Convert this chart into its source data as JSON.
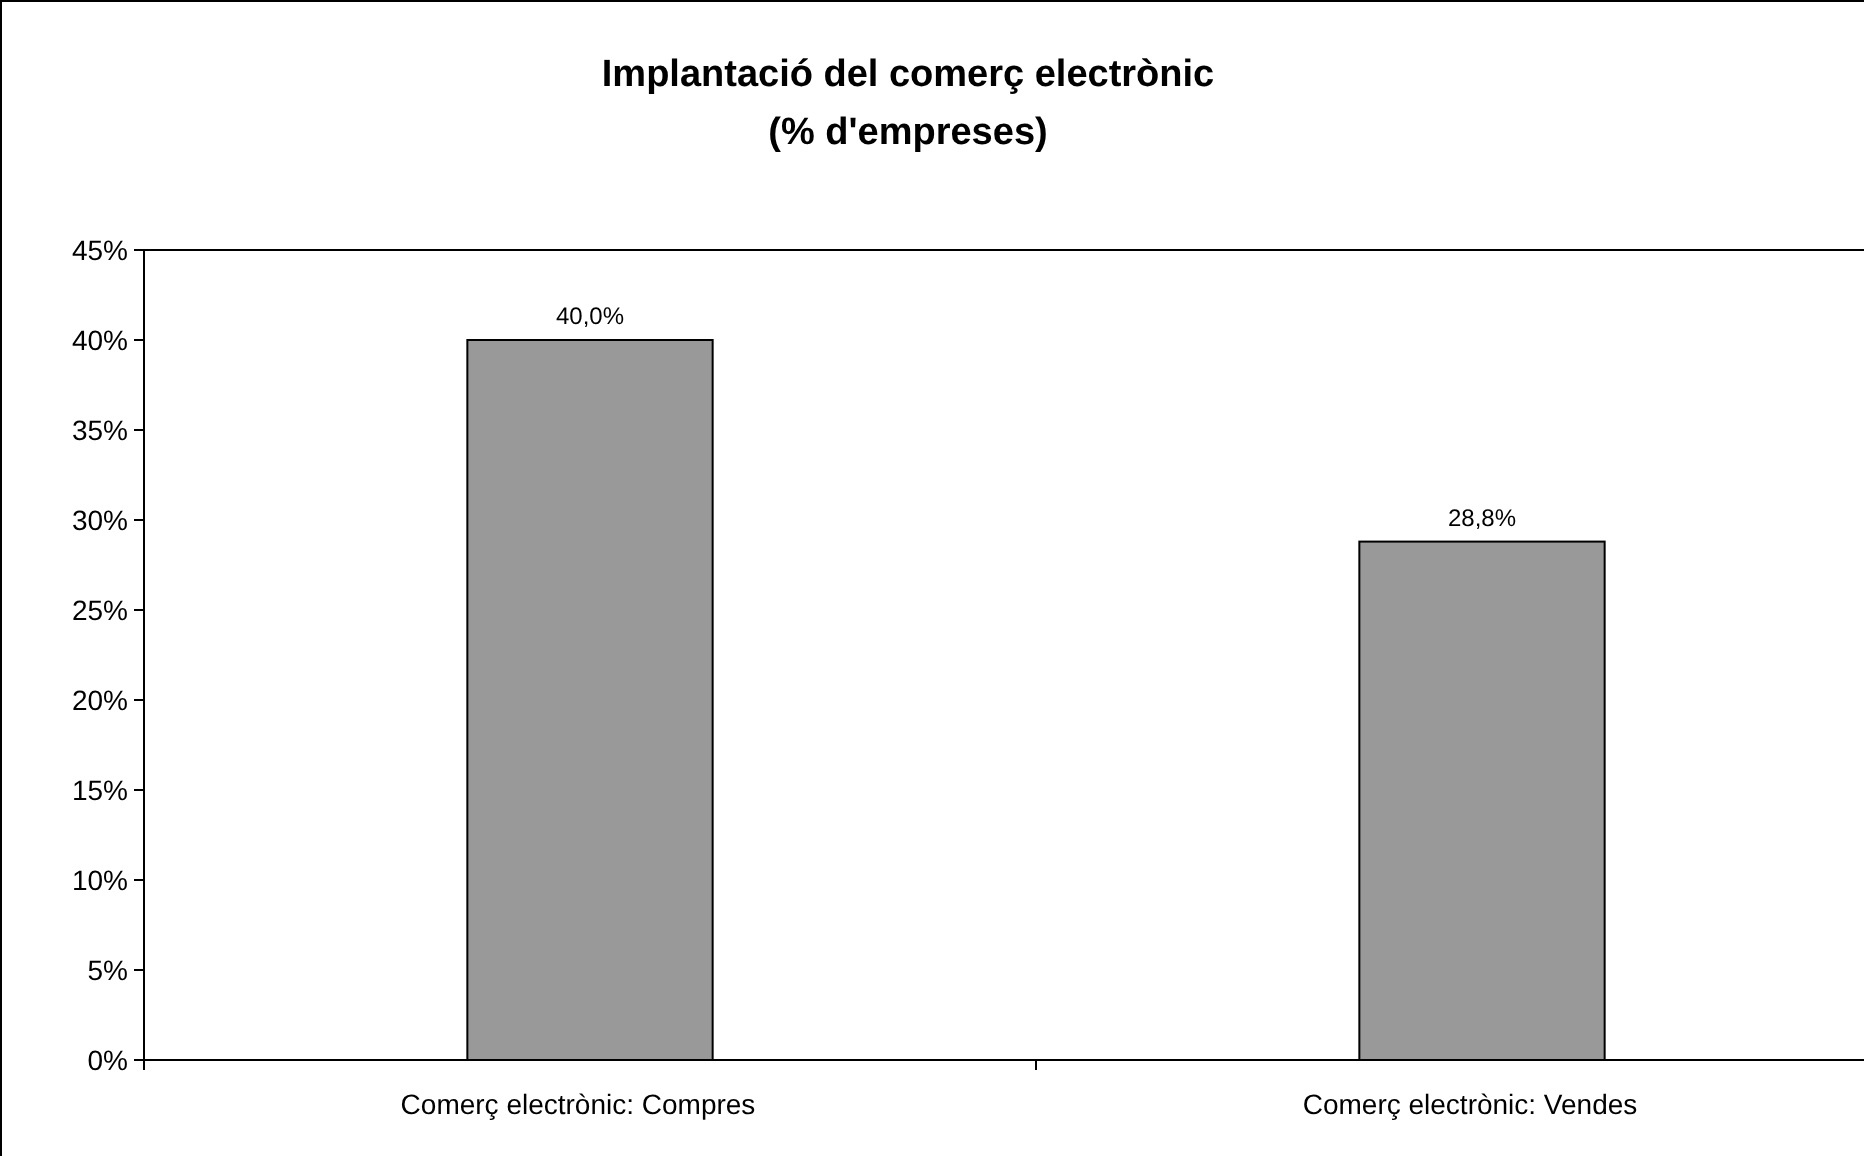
{
  "chart_data": {
    "type": "bar",
    "title": "Implantació del comerç electrònic\n(% d'empreses)",
    "categories": [
      "Comerç electrònic: Compres",
      "Comerç electrònic: Vendes"
    ],
    "values": [
      40.0,
      28.8
    ],
    "value_labels": [
      "40,0%",
      "28,8%"
    ],
    "color": "#999999",
    "ylim": [
      0,
      45
    ],
    "yticks": [
      {
        "value": 0,
        "label": "0%"
      },
      {
        "value": 5,
        "label": "5%"
      },
      {
        "value": 10,
        "label": "10%"
      },
      {
        "value": 15,
        "label": "15%"
      },
      {
        "value": 20,
        "label": "20%"
      },
      {
        "value": 25,
        "label": "25%"
      },
      {
        "value": 30,
        "label": "30%"
      },
      {
        "value": 35,
        "label": "35%"
      },
      {
        "value": 40,
        "label": "40%"
      },
      {
        "value": 45,
        "label": "45%"
      }
    ]
  }
}
